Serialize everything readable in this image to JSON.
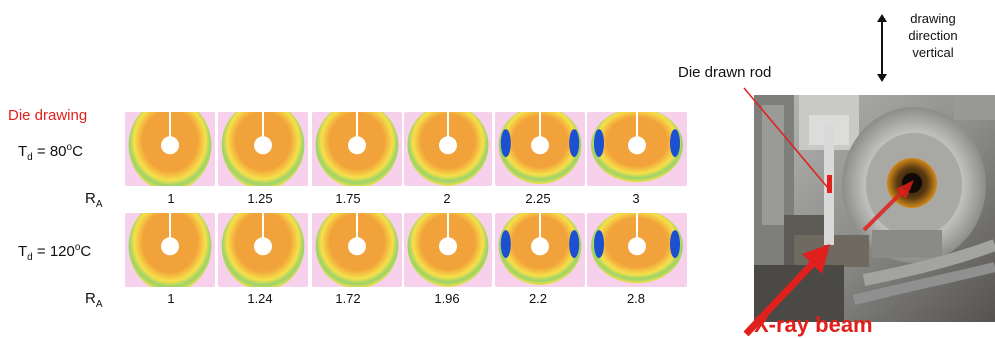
{
  "die_drawing_label": "Die drawing",
  "rows": [
    {
      "temp_prefix": "T",
      "temp_sub": "d",
      "temp_value": " = 80",
      "temp_sup": "o",
      "temp_unit": "C",
      "ra_label": "R",
      "ra_sub": "A",
      "ra_values": [
        "1",
        "1.25",
        "1.75",
        "2",
        "2.25",
        "3"
      ]
    },
    {
      "temp_prefix": "T",
      "temp_sub": "d",
      "temp_value": " = 120",
      "temp_sup": "o",
      "temp_unit": "C",
      "ra_label": "R",
      "ra_sub": "A",
      "ra_values": [
        "1",
        "1.24",
        "1.72",
        "1.96",
        "2.2",
        "2.8"
      ]
    }
  ],
  "photo": {
    "rod_label": "Die drawn rod",
    "xray_label": "X-ray beam",
    "direction_lines": [
      "drawing",
      "direction",
      "vertical"
    ]
  },
  "colors": {
    "accent_red": "#e0201c",
    "pattern_orange": "#f2a23a",
    "pattern_yellow": "#f6e04a",
    "pattern_magenta": "#e879c9",
    "pattern_blue": "#1d4fd1"
  }
}
